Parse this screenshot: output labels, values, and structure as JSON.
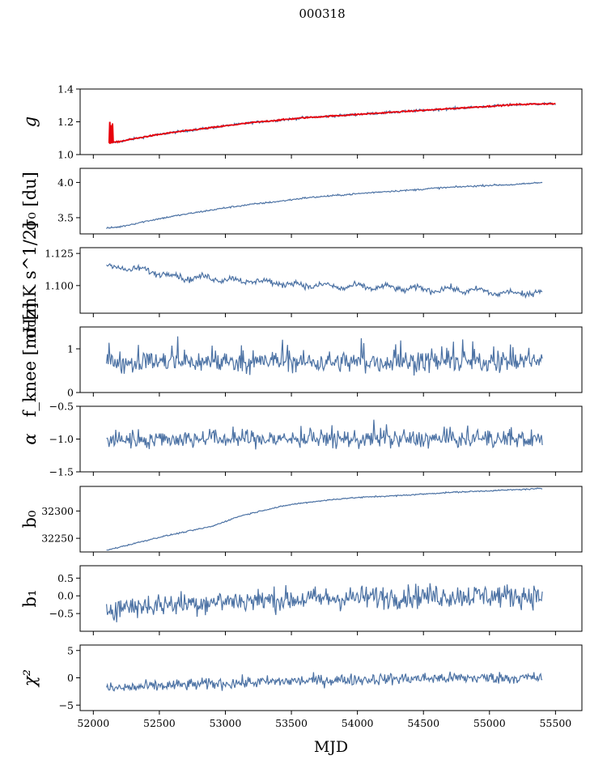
{
  "chart_data": {
    "type": "line",
    "title": "000318",
    "xlabel": "MJD",
    "xlim": [
      51900,
      55700
    ],
    "xticks": [
      52000,
      52500,
      53000,
      53500,
      54000,
      54500,
      55000,
      55500
    ],
    "xtick_labels": [
      "52000",
      "52500",
      "53000",
      "53500",
      "54000",
      "54500",
      "55000",
      "55500"
    ],
    "colors": {
      "series": "#4c72a4",
      "fit": "#e8000b"
    },
    "panels": [
      {
        "id": "g",
        "ylabel": "g",
        "ylim": [
          1.0,
          1.4
        ],
        "yticks": [
          1.0,
          1.2,
          1.4
        ],
        "ytick_labels": [
          "1.0",
          "1.2",
          "1.4"
        ],
        "series": [
          {
            "name": "g",
            "x_start": 52120,
            "x_end": 55500,
            "knots": [
              [
                52120,
                1.07
              ],
              [
                52200,
                1.08
              ],
              [
                52400,
                1.11
              ],
              [
                52600,
                1.135
              ],
              [
                52800,
                1.155
              ],
              [
                53000,
                1.175
              ],
              [
                53200,
                1.195
              ],
              [
                53400,
                1.21
              ],
              [
                53600,
                1.225
              ],
              [
                53800,
                1.235
              ],
              [
                54000,
                1.245
              ],
              [
                54200,
                1.255
              ],
              [
                54400,
                1.265
              ],
              [
                54600,
                1.275
              ],
              [
                54800,
                1.285
              ],
              [
                55000,
                1.295
              ],
              [
                55200,
                1.305
              ],
              [
                55400,
                1.31
              ],
              [
                55500,
                1.31
              ]
            ],
            "noise": 0.004
          },
          {
            "name": "fit",
            "x_start": 52120,
            "x_end": 55500,
            "knots": [
              [
                52120,
                1.07
              ],
              [
                52200,
                1.08
              ],
              [
                52400,
                1.11
              ],
              [
                52600,
                1.135
              ],
              [
                52800,
                1.155
              ],
              [
                53000,
                1.175
              ],
              [
                53200,
                1.195
              ],
              [
                53400,
                1.21
              ],
              [
                53600,
                1.225
              ],
              [
                53800,
                1.235
              ],
              [
                54000,
                1.245
              ],
              [
                54200,
                1.255
              ],
              [
                54400,
                1.265
              ],
              [
                54600,
                1.275
              ],
              [
                54800,
                1.285
              ],
              [
                55000,
                1.295
              ],
              [
                55200,
                1.305
              ],
              [
                55400,
                1.31
              ],
              [
                55500,
                1.31
              ]
            ],
            "noise": 0.002,
            "spike": [
              [
                52120,
                1.07
              ],
              [
                52125,
                1.2
              ],
              [
                52130,
                1.07
              ],
              [
                52135,
                1.18
              ],
              [
                52140,
                1.07
              ],
              [
                52145,
                1.19
              ],
              [
                52150,
                1.08
              ]
            ]
          }
        ]
      },
      {
        "id": "sigma0_du",
        "ylabel": "σ₀ [du]",
        "ylim": [
          3.27,
          4.2
        ],
        "yticks": [
          3.5,
          4.0
        ],
        "ytick_labels": [
          "3.5",
          "4.0"
        ],
        "series": [
          {
            "name": "sigma0_du",
            "x_start": 52100,
            "x_end": 55400,
            "knots": [
              [
                52100,
                3.35
              ],
              [
                52200,
                3.37
              ],
              [
                52400,
                3.45
              ],
              [
                52600,
                3.52
              ],
              [
                52800,
                3.58
              ],
              [
                53000,
                3.64
              ],
              [
                53200,
                3.69
              ],
              [
                53400,
                3.73
              ],
              [
                53600,
                3.78
              ],
              [
                53800,
                3.81
              ],
              [
                54000,
                3.84
              ],
              [
                54200,
                3.87
              ],
              [
                54400,
                3.89
              ],
              [
                54600,
                3.92
              ],
              [
                54800,
                3.94
              ],
              [
                55000,
                3.96
              ],
              [
                55200,
                3.97
              ],
              [
                55400,
                4.0
              ]
            ],
            "noise": 0.006
          }
        ]
      },
      {
        "id": "sigma0_mK",
        "ylabel": "σ₀[mK s^1/2]",
        "ylim": [
          1.0785,
          1.1295
        ],
        "yticks": [
          1.1,
          1.125
        ],
        "ytick_labels": [
          "1.100",
          "1.125"
        ],
        "series": [
          {
            "name": "sigma0_mK",
            "x_start": 52100,
            "x_end": 55400,
            "knots": [
              [
                52100,
                1.115
              ],
              [
                52300,
                1.113
              ],
              [
                52500,
                1.11
              ],
              [
                52700,
                1.106
              ],
              [
                52900,
                1.106
              ],
              [
                53100,
                1.104
              ],
              [
                53300,
                1.103
              ],
              [
                53500,
                1.101
              ],
              [
                53700,
                1.1
              ],
              [
                53900,
                1.099
              ],
              [
                54100,
                1.099
              ],
              [
                54300,
                1.098
              ],
              [
                54500,
                1.097
              ],
              [
                54700,
                1.097
              ],
              [
                54900,
                1.096
              ],
              [
                55100,
                1.094
              ],
              [
                55300,
                1.094
              ],
              [
                55400,
                1.095
              ]
            ],
            "noise": 0.0012
          }
        ]
      },
      {
        "id": "fknee",
        "ylabel": "f_knee [mHz]",
        "ylim": [
          0,
          1.5
        ],
        "yticks": [
          0,
          1
        ],
        "ytick_labels": [
          "0",
          "1"
        ],
        "series": [
          {
            "name": "fknee",
            "x_start": 52100,
            "x_end": 55400,
            "knots": [
              [
                52100,
                0.7
              ],
              [
                55400,
                0.7
              ]
            ],
            "noise": 0.12
          }
        ]
      },
      {
        "id": "alpha",
        "ylabel": "α",
        "ylim": [
          -1.5,
          -0.5
        ],
        "yticks": [
          -1.5,
          -1.0,
          -0.5
        ],
        "ytick_labels": [
          "−1.5",
          "−1.0",
          "−0.5"
        ],
        "series": [
          {
            "name": "alpha",
            "x_start": 52100,
            "x_end": 55400,
            "knots": [
              [
                52100,
                -1.0
              ],
              [
                55400,
                -1.0
              ]
            ],
            "noise": 0.07
          }
        ]
      },
      {
        "id": "b0",
        "ylabel": "b₀",
        "ylim": [
          32225,
          32345
        ],
        "yticks": [
          32250,
          32300
        ],
        "ytick_labels": [
          "32250",
          "32300"
        ],
        "series": [
          {
            "name": "b0",
            "x_start": 52100,
            "x_end": 55400,
            "knots": [
              [
                52100,
                32228
              ],
              [
                52300,
                32240
              ],
              [
                52500,
                32252
              ],
              [
                52700,
                32262
              ],
              [
                52900,
                32272
              ],
              [
                53100,
                32290
              ],
              [
                53300,
                32302
              ],
              [
                53500,
                32312
              ],
              [
                53700,
                32318
              ],
              [
                53900,
                32323
              ],
              [
                54100,
                32326
              ],
              [
                54300,
                32328
              ],
              [
                54500,
                32331
              ],
              [
                54700,
                32334
              ],
              [
                54900,
                32336
              ],
              [
                55100,
                32338
              ],
              [
                55300,
                32340
              ],
              [
                55400,
                32341
              ]
            ],
            "noise": 0.6
          }
        ]
      },
      {
        "id": "b1",
        "ylabel": "b₁",
        "ylim": [
          -1.0,
          0.85
        ],
        "yticks": [
          -0.5,
          0.0,
          0.5
        ],
        "ytick_labels": [
          "−0.5",
          "0.0",
          "0.5"
        ],
        "series": [
          {
            "name": "b1",
            "x_start": 52100,
            "x_end": 55400,
            "knots": [
              [
                52100,
                -0.35
              ],
              [
                52500,
                -0.25
              ],
              [
                53000,
                -0.15
              ],
              [
                53500,
                -0.1
              ],
              [
                54000,
                -0.05
              ],
              [
                54500,
                0.0
              ],
              [
                55000,
                0.0
              ],
              [
                55400,
                0.0
              ]
            ],
            "noise": 0.17
          }
        ]
      },
      {
        "id": "chi2",
        "ylabel": "χ²",
        "ylim": [
          -6,
          6
        ],
        "yticks": [
          -5,
          0,
          5
        ],
        "ytick_labels": [
          "−5",
          "0",
          "5"
        ],
        "series": [
          {
            "name": "chi2",
            "x_start": 52100,
            "x_end": 55400,
            "knots": [
              [
                52100,
                -2.0
              ],
              [
                52500,
                -1.5
              ],
              [
                53000,
                -1.0
              ],
              [
                53500,
                -0.6
              ],
              [
                54000,
                -0.3
              ],
              [
                54500,
                -0.1
              ],
              [
                55000,
                0.0
              ],
              [
                55400,
                0.0
              ]
            ],
            "noise": 0.55
          }
        ]
      }
    ]
  }
}
